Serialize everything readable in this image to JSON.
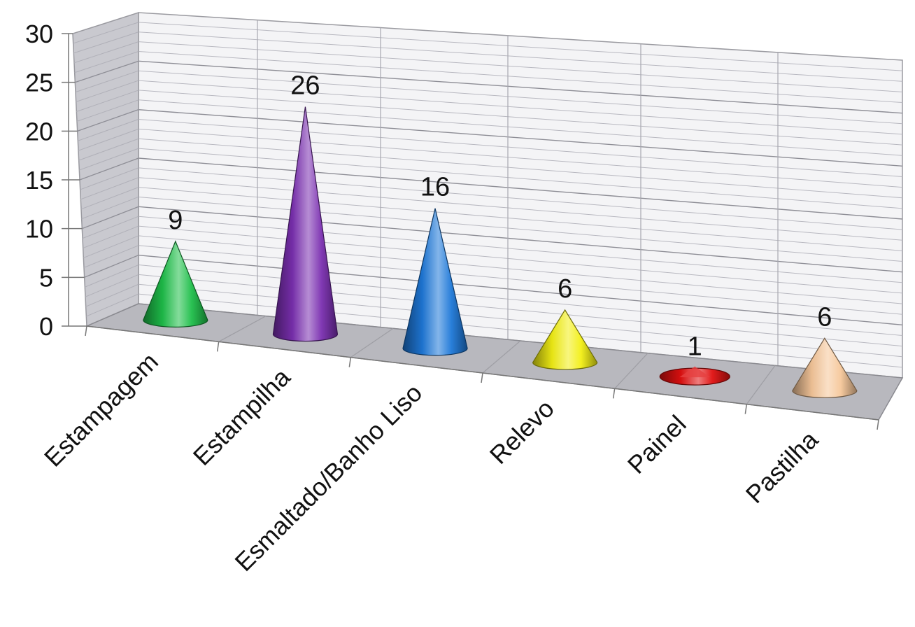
{
  "chart_data": {
    "type": "bar",
    "bar_shape": "cone-3d",
    "categories": [
      "Estampagem",
      "Estampilha",
      "Esmaltado/Banho Liso",
      "Relevo",
      "Painel",
      "Pastilha"
    ],
    "values": [
      9,
      26,
      16,
      6,
      1,
      6
    ],
    "data_labels": [
      "9",
      "26",
      "16",
      "6",
      "1",
      "6"
    ],
    "colors": [
      "#1fbf4a",
      "#7a2fb0",
      "#1e78d8",
      "#f2ef14",
      "#e01010",
      "#f6c79a"
    ],
    "y_ticks": [
      "0",
      "5",
      "10",
      "15",
      "20",
      "25",
      "30"
    ],
    "ylim": [
      0,
      30
    ],
    "title": "",
    "xlabel": "",
    "ylabel": "",
    "grid": true,
    "legend": "none"
  }
}
